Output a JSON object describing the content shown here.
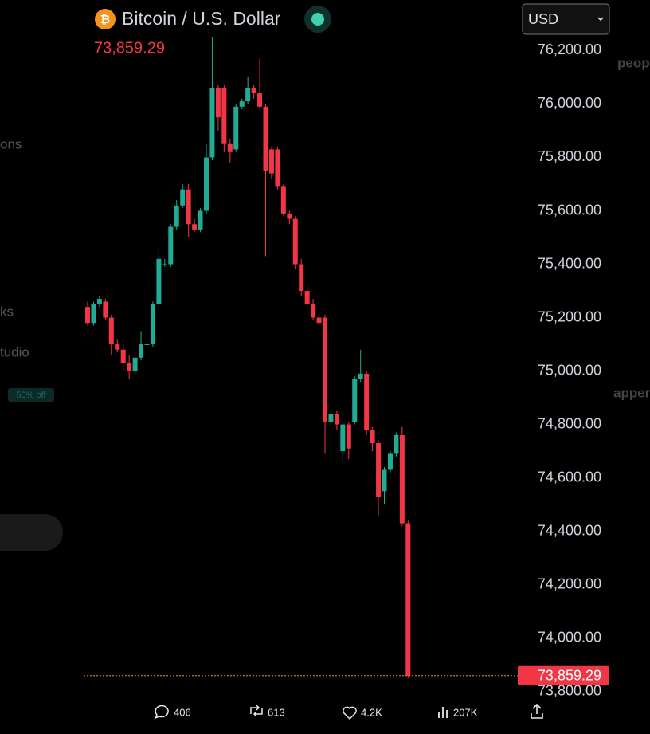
{
  "chart_data": {
    "type": "candlestick",
    "title": "Bitcoin / U.S. Dollar",
    "currency": "USD",
    "last_price": {
      "value": 73859.29,
      "label": "73,859.29"
    },
    "up_color": "#22ab94",
    "down_color": "#f23645",
    "open": [
      75240,
      75180,
      75250,
      75260,
      75200,
      75100,
      75080,
      75030,
      75000,
      75050,
      75100,
      75100,
      75250,
      75400,
      75400,
      75540,
      75620,
      75680,
      75550,
      75530,
      75600,
      75800,
      76060,
      76060,
      75850,
      75830,
      75990,
      76010,
      76060,
      76040,
      75990,
      75830,
      75830,
      75690,
      75590,
      75570,
      75400,
      75300,
      75250,
      75200,
      75200,
      74810,
      74840,
      74700,
      74800,
      74810,
      74970,
      74990,
      74780,
      74730,
      74550,
      74630,
      74690,
      74760,
      74430
    ],
    "high": [
      75260,
      75260,
      75280,
      75270,
      75210,
      75120,
      75100,
      75060,
      75060,
      75150,
      75120,
      75260,
      75460,
      75420,
      75550,
      75640,
      75700,
      75700,
      75570,
      75610,
      75850,
      76250,
      76070,
      76070,
      75870,
      76000,
      76020,
      76100,
      76070,
      76170,
      76000,
      75840,
      75840,
      75700,
      75600,
      75580,
      75420,
      75320,
      75270,
      75220,
      75210,
      74850,
      74850,
      74820,
      74810,
      74980,
      75080,
      75000,
      74790,
      74740,
      74640,
      74700,
      74770,
      74790,
      74440
    ],
    "low": [
      75170,
      75170,
      75240,
      75190,
      75060,
      75070,
      75000,
      74970,
      74990,
      75040,
      75090,
      75090,
      75240,
      75390,
      75390,
      75530,
      75610,
      75500,
      75520,
      75520,
      75590,
      75790,
      75900,
      75820,
      75780,
      75820,
      75980,
      76000,
      76020,
      75980,
      75430,
      75720,
      75680,
      75580,
      75550,
      75380,
      75280,
      75240,
      75190,
      75170,
      74690,
      74680,
      74780,
      74660,
      74670,
      74800,
      74960,
      74760,
      74700,
      74460,
      74500,
      74620,
      74680,
      74420,
      73850
    ],
    "close": [
      75180,
      75250,
      75270,
      75200,
      75100,
      75080,
      75030,
      75000,
      75050,
      75100,
      75100,
      75250,
      75420,
      75400,
      75540,
      75620,
      75680,
      75550,
      75530,
      75600,
      75800,
      76060,
      75950,
      75850,
      75820,
      75990,
      76010,
      76060,
      76040,
      75990,
      75750,
      75740,
      75690,
      75590,
      75570,
      75400,
      75300,
      75250,
      75200,
      75180,
      74810,
      74840,
      74800,
      74800,
      74710,
      74970,
      74990,
      74780,
      74730,
      74530,
      74630,
      74690,
      74760,
      74430,
      73859.29
    ],
    "ylim": [
      73790,
      76270
    ],
    "yticks": [
      {
        "value": 73800,
        "label": "73,800.00"
      },
      {
        "value": 74000,
        "label": "74,000.00"
      },
      {
        "value": 74200,
        "label": "74,200.00"
      },
      {
        "value": 74400,
        "label": "74,400.00"
      },
      {
        "value": 74600,
        "label": "74,600.00"
      },
      {
        "value": 74800,
        "label": "74,800.00"
      },
      {
        "value": 75000,
        "label": "75,000.00"
      },
      {
        "value": 75200,
        "label": "75,200.00"
      },
      {
        "value": 75400,
        "label": "75,400.00"
      },
      {
        "value": 75600,
        "label": "75,600.00"
      },
      {
        "value": 75800,
        "label": "75,800.00"
      },
      {
        "value": 76000,
        "label": "76,000.00"
      },
      {
        "value": 76200,
        "label": "76,200.00"
      }
    ]
  },
  "post": {
    "replies": 406,
    "reposts": 613,
    "likes": "4.2K",
    "views": "207K"
  },
  "sidebar": {
    "left": [
      "ons",
      "ks",
      "tudio",
      "50% off"
    ],
    "right": [
      "peop",
      "appen"
    ]
  }
}
